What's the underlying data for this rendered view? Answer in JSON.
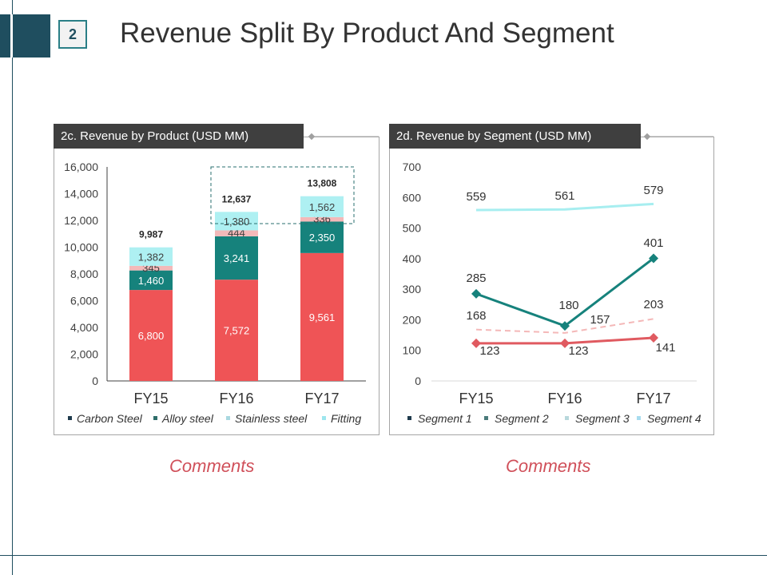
{
  "slide": {
    "number": "2",
    "title": "Revenue Split By Product And Segment"
  },
  "colors": {
    "brand_dark": "#1f4e5f",
    "header_bg": "#3f3f3f",
    "comment_red": "#d0505a"
  },
  "panels": {
    "left": {
      "header": "2c. Revenue by Product (USD MM)",
      "comment": "Comments"
    },
    "right": {
      "header": "2d. Revenue by Segment (USD MM)",
      "comment": "Comments"
    }
  },
  "chart_data": [
    {
      "type": "bar",
      "stacked": true,
      "title": "2c. Revenue by Product (USD MM)",
      "categories": [
        "FY15",
        "FY16",
        "FY17"
      ],
      "yticks": [
        "0",
        "2,000",
        "4,000",
        "6,000",
        "8,000",
        "10,000",
        "12,000",
        "14,000",
        "16,000"
      ],
      "ylim": [
        0,
        16000
      ],
      "series": [
        {
          "name": "Carbon Steel",
          "values": [
            6800,
            7572,
            9561
          ],
          "labels": [
            "6,800",
            "7,572",
            "9,561"
          ],
          "color": "#ef5456",
          "legend_color": "#1f3b4d",
          "label_color": "#ffffff"
        },
        {
          "name": "Alloy steel",
          "values": [
            1460,
            3241,
            2350
          ],
          "labels": [
            "1,460",
            "3,241",
            "2,350"
          ],
          "color": "#16827c",
          "legend_color": "#2e6d6a",
          "label_color": "#ffffff"
        },
        {
          "name": "Stainless steel",
          "values": [
            345,
            444,
            336
          ],
          "labels": [
            "345",
            "444",
            "336"
          ],
          "color": "#f3b9b9",
          "legend_color": "#a9d8e0",
          "label_color": "#404040"
        },
        {
          "name": "Fitting",
          "values": [
            1382,
            1380,
            1562
          ],
          "labels": [
            "1,382",
            "1,380",
            "1,562"
          ],
          "color": "#aef0f2",
          "legend_color": "#9de6ee",
          "label_color": "#404040"
        }
      ],
      "totals": [
        9987,
        12637,
        13808
      ],
      "total_labels": [
        "9,987",
        "12,637",
        "13,808"
      ],
      "highlight": "dashed box around FY16–FY17 tops",
      "legend": "bottom",
      "grid": false
    },
    {
      "type": "line",
      "title": "2d. Revenue by Segment (USD MM)",
      "categories": [
        "FY15",
        "FY16",
        "FY17"
      ],
      "yticks": [
        "0",
        "100",
        "200",
        "300",
        "400",
        "500",
        "600",
        "700"
      ],
      "ylim": [
        0,
        700
      ],
      "series": [
        {
          "name": "Segment 1",
          "values": [
            123,
            123,
            141
          ],
          "labels": [
            "123",
            "123",
            "141"
          ],
          "color": "#e05a60",
          "legend_color": "#1f3b4d",
          "style": "solid",
          "marker": "diamond"
        },
        {
          "name": "Segment 2",
          "values": [
            285,
            180,
            401
          ],
          "labels": [
            "285",
            "180",
            "401"
          ],
          "color": "#16827c",
          "legend_color": "#4a7a7a",
          "style": "solid",
          "marker": "diamond"
        },
        {
          "name": "Segment 3",
          "values": [
            168,
            157,
            203
          ],
          "labels": [
            "168",
            "157",
            "203"
          ],
          "color": "#f4b8b8",
          "legend_color": "#b8d8dc",
          "style": "dashed",
          "marker": "none"
        },
        {
          "name": "Segment 4",
          "values": [
            559,
            561,
            579
          ],
          "labels": [
            "559",
            "561",
            "579"
          ],
          "color": "#a7eef0",
          "legend_color": "#a8dcef",
          "style": "solid",
          "marker": "none"
        }
      ],
      "legend": "bottom",
      "grid": false
    }
  ]
}
